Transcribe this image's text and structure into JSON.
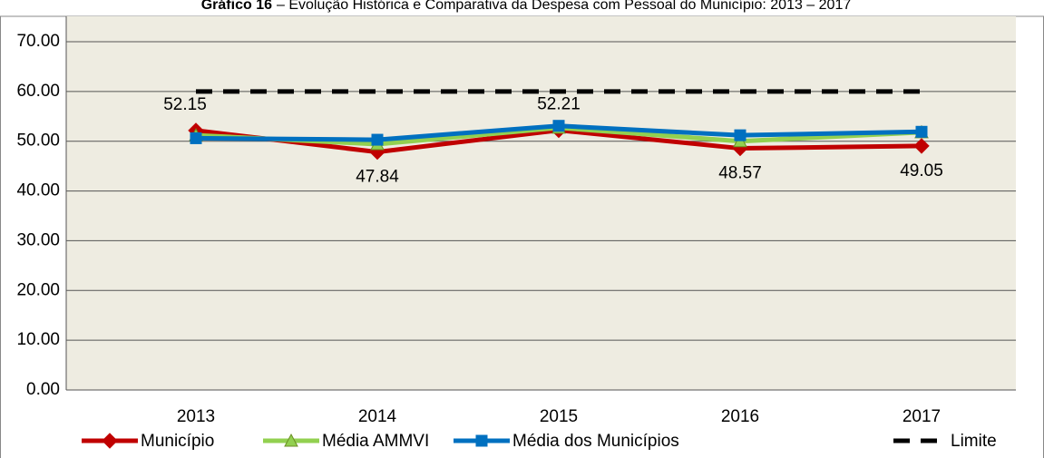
{
  "chart_data": {
    "type": "line",
    "title_lead": "Gráfico 16",
    "title": "– Evolução Histórica e Comparativa da Despesa com Pessoal do Município: 2013 – 2017",
    "categories": [
      "2013",
      "2014",
      "2015",
      "2016",
      "2017"
    ],
    "series": [
      {
        "name": "Município",
        "color": "#c00000",
        "marker": "diamond",
        "values": [
          52.15,
          47.84,
          52.21,
          48.57,
          49.05
        ],
        "show_labels": true
      },
      {
        "name": "Média AMMVI",
        "color": "#92d050",
        "marker": "triangle",
        "values": [
          51.2,
          49.4,
          52.7,
          50.0,
          51.8
        ]
      },
      {
        "name": "Média dos Municípios",
        "color": "#0070c0",
        "marker": "square",
        "values": [
          50.6,
          50.3,
          53.1,
          51.2,
          51.9
        ]
      },
      {
        "name": "Limite",
        "color": "#000000",
        "marker": "none",
        "dashed": true,
        "values": [
          60,
          60,
          60,
          60,
          60
        ]
      }
    ],
    "ylim": [
      0,
      70
    ],
    "yticks": [
      {
        "value": 0,
        "label": "0.00"
      },
      {
        "value": 10,
        "label": "10.00"
      },
      {
        "value": 20,
        "label": "20.00"
      },
      {
        "value": 30,
        "label": "30.00"
      },
      {
        "value": 40,
        "label": "40.00"
      },
      {
        "value": 50,
        "label": "50.00"
      },
      {
        "value": 60,
        "label": "60.00"
      },
      {
        "value": 70,
        "label": "70.00"
      }
    ],
    "grid": true,
    "legend": "bottom"
  }
}
